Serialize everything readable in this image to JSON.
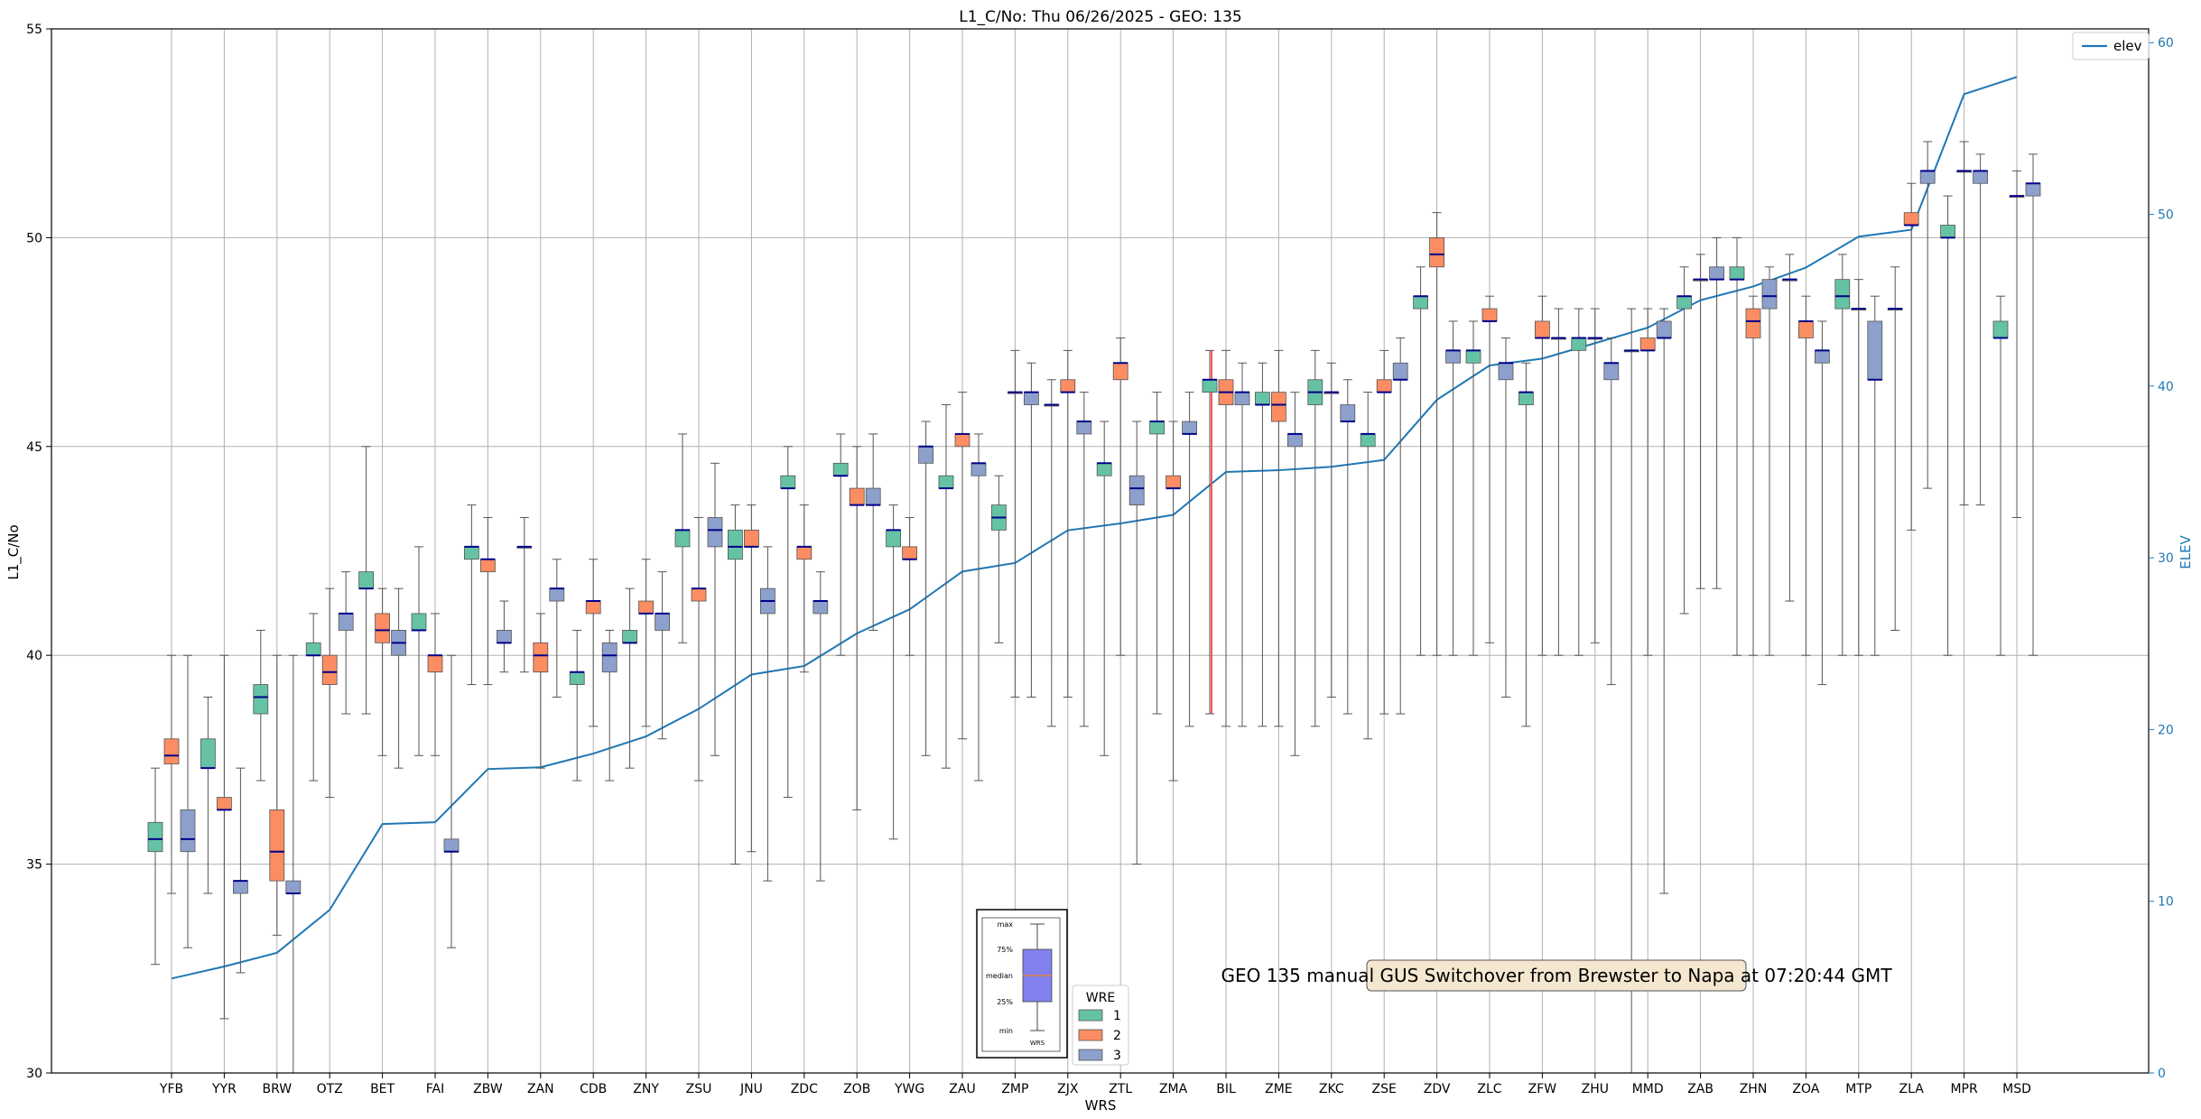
{
  "chart_data": {
    "type": "box",
    "title": "L1_C/No: Thu 06/26/2025 - GEO: 135",
    "xlabel": "WRS",
    "ylabel": "L1_C/No",
    "y2label": "ELEV",
    "ylim": [
      30,
      55
    ],
    "y2lim": [
      0,
      60.8
    ],
    "yticks": [
      30,
      35,
      40,
      45,
      50,
      55
    ],
    "y2ticks": [
      0,
      10,
      20,
      30,
      40,
      50,
      60
    ],
    "grid": true,
    "legend": {
      "entries": [
        "elev"
      ],
      "placement": "top-right"
    },
    "annotation": "GEO 135 manual GUS Switchover from Brewster to Napa at 07:20:44 GMT",
    "colors": {
      "1": "#66c2a5",
      "2": "#fc8d62",
      "3": "#8da0cb",
      "elev": "#1f77b4",
      "median": "#00008b",
      "whisker": "#555555",
      "highlight": "#ff5555",
      "y2axis": "#1f77b4"
    },
    "wre_legend": {
      "title": "WRE",
      "labels": [
        "1",
        "2",
        "3"
      ]
    },
    "inset_box_legend": {
      "labels": [
        "max",
        "75%",
        "median",
        "25%",
        "min"
      ],
      "xlabel": "WRS"
    },
    "categories": [
      "YFB",
      "YYR",
      "BRW",
      "OTZ",
      "BET",
      "FAI",
      "ZBW",
      "ZAN",
      "CDB",
      "ZNY",
      "ZSU",
      "JNU",
      "ZDC",
      "ZOB",
      "YWG",
      "ZAU",
      "ZMP",
      "ZJX",
      "ZTL",
      "ZMA",
      "BIL",
      "ZME",
      "ZKC",
      "ZSE",
      "ZDV",
      "ZLC",
      "ZFW",
      "ZHU",
      "MMD",
      "ZAB",
      "ZHN",
      "ZOA",
      "MTP",
      "ZLA",
      "MPR",
      "MSD"
    ],
    "elev": [
      5.5,
      6.2,
      7.0,
      9.5,
      14.5,
      14.6,
      17.7,
      17.8,
      18.6,
      19.6,
      21.2,
      23.2,
      23.7,
      25.6,
      27.0,
      29.2,
      29.7,
      31.6,
      32.0,
      32.5,
      35.0,
      35.1,
      35.3,
      35.7,
      39.2,
      41.2,
      41.6,
      42.5,
      43.4,
      45.0,
      45.8,
      46.9,
      48.7,
      49.1,
      57.0,
      58.0
    ],
    "boxes": [
      {
        "wrs": "YFB",
        "wre": 1,
        "min": 32.6,
        "q1": 35.3,
        "median": 35.6,
        "q3": 36.0,
        "max": 37.3
      },
      {
        "wrs": "YFB",
        "wre": 2,
        "min": 34.3,
        "q1": 37.4,
        "median": 37.6,
        "q3": 38.0,
        "max": 40.0
      },
      {
        "wrs": "YFB",
        "wre": 3,
        "min": 33.0,
        "q1": 35.3,
        "median": 35.6,
        "q3": 36.3,
        "max": 40.0
      },
      {
        "wrs": "YYR",
        "wre": 1,
        "min": 34.3,
        "q1": 37.3,
        "median": 37.3,
        "q3": 38.0,
        "max": 39.0
      },
      {
        "wrs": "YYR",
        "wre": 2,
        "min": 31.3,
        "q1": 36.3,
        "median": 36.3,
        "q3": 36.6,
        "max": 40.0
      },
      {
        "wrs": "YYR",
        "wre": 3,
        "min": 32.4,
        "q1": 34.3,
        "median": 34.6,
        "q3": 34.6,
        "max": 37.3
      },
      {
        "wrs": "BRW",
        "wre": 1,
        "min": 37.0,
        "q1": 38.6,
        "median": 39.0,
        "q3": 39.3,
        "max": 40.6
      },
      {
        "wrs": "BRW",
        "wre": 2,
        "min": 33.3,
        "q1": 34.6,
        "median": 35.3,
        "q3": 36.3,
        "max": 40.0
      },
      {
        "wrs": "BRW",
        "wre": 3,
        "min": 30.0,
        "q1": 34.3,
        "median": 34.3,
        "q3": 34.6,
        "max": 40.0
      },
      {
        "wrs": "OTZ",
        "wre": 1,
        "min": 37.0,
        "q1": 40.0,
        "median": 40.0,
        "q3": 40.3,
        "max": 41.0
      },
      {
        "wrs": "OTZ",
        "wre": 2,
        "min": 36.6,
        "q1": 39.3,
        "median": 39.6,
        "q3": 40.0,
        "max": 41.6
      },
      {
        "wrs": "OTZ",
        "wre": 3,
        "min": 38.6,
        "q1": 40.6,
        "median": 41.0,
        "q3": 41.0,
        "max": 42.0
      },
      {
        "wrs": "BET",
        "wre": 1,
        "min": 38.6,
        "q1": 41.6,
        "median": 41.6,
        "q3": 42.0,
        "max": 45.0
      },
      {
        "wrs": "BET",
        "wre": 2,
        "min": 37.6,
        "q1": 40.3,
        "median": 40.6,
        "q3": 41.0,
        "max": 41.6
      },
      {
        "wrs": "BET",
        "wre": 3,
        "min": 37.3,
        "q1": 40.0,
        "median": 40.3,
        "q3": 40.6,
        "max": 41.6
      },
      {
        "wrs": "FAI",
        "wre": 1,
        "min": 37.6,
        "q1": 40.6,
        "median": 40.6,
        "q3": 41.0,
        "max": 42.6
      },
      {
        "wrs": "FAI",
        "wre": 2,
        "min": 37.6,
        "q1": 39.6,
        "median": 40.0,
        "q3": 40.0,
        "max": 41.0
      },
      {
        "wrs": "FAI",
        "wre": 3,
        "min": 33.0,
        "q1": 35.3,
        "median": 35.3,
        "q3": 35.6,
        "max": 40.0
      },
      {
        "wrs": "ZBW",
        "wre": 1,
        "min": 39.3,
        "q1": 42.3,
        "median": 42.6,
        "q3": 42.6,
        "max": 43.6
      },
      {
        "wrs": "ZBW",
        "wre": 2,
        "min": 39.3,
        "q1": 42.0,
        "median": 42.3,
        "q3": 42.3,
        "max": 43.3
      },
      {
        "wrs": "ZBW",
        "wre": 3,
        "min": 39.6,
        "q1": 40.3,
        "median": 40.3,
        "q3": 40.6,
        "max": 41.3
      },
      {
        "wrs": "ZAN",
        "wre": 1,
        "min": 39.6,
        "q1": 42.6,
        "median": 42.6,
        "q3": 42.6,
        "max": 43.3
      },
      {
        "wrs": "ZAN",
        "wre": 2,
        "min": 37.3,
        "q1": 39.6,
        "median": 40.0,
        "q3": 40.3,
        "max": 41.0
      },
      {
        "wrs": "ZAN",
        "wre": 3,
        "min": 39.0,
        "q1": 41.3,
        "median": 41.6,
        "q3": 41.6,
        "max": 42.3
      },
      {
        "wrs": "CDB",
        "wre": 1,
        "min": 37.0,
        "q1": 39.3,
        "median": 39.6,
        "q3": 39.6,
        "max": 40.6
      },
      {
        "wrs": "CDB",
        "wre": 2,
        "min": 38.3,
        "q1": 41.0,
        "median": 41.3,
        "q3": 41.3,
        "max": 42.3
      },
      {
        "wrs": "CDB",
        "wre": 3,
        "min": 37.0,
        "q1": 39.6,
        "median": 40.0,
        "q3": 40.3,
        "max": 40.6
      },
      {
        "wrs": "ZNY",
        "wre": 1,
        "min": 37.3,
        "q1": 40.3,
        "median": 40.3,
        "q3": 40.6,
        "max": 41.6
      },
      {
        "wrs": "ZNY",
        "wre": 2,
        "min": 38.3,
        "q1": 41.0,
        "median": 41.0,
        "q3": 41.3,
        "max": 42.3
      },
      {
        "wrs": "ZNY",
        "wre": 3,
        "min": 38.0,
        "q1": 40.6,
        "median": 41.0,
        "q3": 41.0,
        "max": 42.0
      },
      {
        "wrs": "ZSU",
        "wre": 1,
        "min": 40.3,
        "q1": 42.6,
        "median": 43.0,
        "q3": 43.0,
        "max": 45.3
      },
      {
        "wrs": "ZSU",
        "wre": 2,
        "min": 37.0,
        "q1": 41.3,
        "median": 41.6,
        "q3": 41.6,
        "max": 43.3
      },
      {
        "wrs": "ZSU",
        "wre": 3,
        "min": 37.6,
        "q1": 42.6,
        "median": 43.0,
        "q3": 43.3,
        "max": 44.6
      },
      {
        "wrs": "JNU",
        "wre": 1,
        "min": 35.0,
        "q1": 42.3,
        "median": 42.6,
        "q3": 43.0,
        "max": 43.6
      },
      {
        "wrs": "JNU",
        "wre": 2,
        "min": 35.3,
        "q1": 42.6,
        "median": 42.6,
        "q3": 43.0,
        "max": 43.6
      },
      {
        "wrs": "JNU",
        "wre": 3,
        "min": 34.6,
        "q1": 41.0,
        "median": 41.3,
        "q3": 41.6,
        "max": 42.6
      },
      {
        "wrs": "ZDC",
        "wre": 1,
        "min": 36.6,
        "q1": 44.0,
        "median": 44.0,
        "q3": 44.3,
        "max": 45.0
      },
      {
        "wrs": "ZDC",
        "wre": 2,
        "min": 39.6,
        "q1": 42.3,
        "median": 42.6,
        "q3": 42.6,
        "max": 43.6
      },
      {
        "wrs": "ZDC",
        "wre": 3,
        "min": 34.6,
        "q1": 41.0,
        "median": 41.3,
        "q3": 41.3,
        "max": 42.0
      },
      {
        "wrs": "ZOB",
        "wre": 1,
        "min": 40.0,
        "q1": 44.3,
        "median": 44.3,
        "q3": 44.6,
        "max": 45.3
      },
      {
        "wrs": "ZOB",
        "wre": 2,
        "min": 36.3,
        "q1": 43.6,
        "median": 43.6,
        "q3": 44.0,
        "max": 45.0
      },
      {
        "wrs": "ZOB",
        "wre": 3,
        "min": 40.6,
        "q1": 43.6,
        "median": 43.6,
        "q3": 44.0,
        "max": 45.3
      },
      {
        "wrs": "YWG",
        "wre": 1,
        "min": 35.6,
        "q1": 42.6,
        "median": 43.0,
        "q3": 43.0,
        "max": 43.6
      },
      {
        "wrs": "YWG",
        "wre": 2,
        "min": 40.0,
        "q1": 42.3,
        "median": 42.3,
        "q3": 42.6,
        "max": 43.3
      },
      {
        "wrs": "YWG",
        "wre": 3,
        "min": 37.6,
        "q1": 44.6,
        "median": 45.0,
        "q3": 45.0,
        "max": 45.6
      },
      {
        "wrs": "ZAU",
        "wre": 1,
        "min": 37.3,
        "q1": 44.0,
        "median": 44.0,
        "q3": 44.3,
        "max": 46.0
      },
      {
        "wrs": "ZAU",
        "wre": 2,
        "min": 38.0,
        "q1": 45.0,
        "median": 45.3,
        "q3": 45.3,
        "max": 46.3
      },
      {
        "wrs": "ZAU",
        "wre": 3,
        "min": 37.0,
        "q1": 44.3,
        "median": 44.6,
        "q3": 44.6,
        "max": 45.3
      },
      {
        "wrs": "ZMP",
        "wre": 1,
        "min": 40.3,
        "q1": 43.0,
        "median": 43.3,
        "q3": 43.6,
        "max": 44.3
      },
      {
        "wrs": "ZMP",
        "wre": 2,
        "min": 39.0,
        "q1": 46.3,
        "median": 46.3,
        "q3": 46.3,
        "max": 47.3
      },
      {
        "wrs": "ZMP",
        "wre": 3,
        "min": 39.0,
        "q1": 46.0,
        "median": 46.3,
        "q3": 46.3,
        "max": 47.0
      },
      {
        "wrs": "ZJX",
        "wre": 1,
        "min": 38.3,
        "q1": 46.0,
        "median": 46.0,
        "q3": 46.0,
        "max": 46.6
      },
      {
        "wrs": "ZJX",
        "wre": 2,
        "min": 39.0,
        "q1": 46.3,
        "median": 46.3,
        "q3": 46.6,
        "max": 47.3
      },
      {
        "wrs": "ZJX",
        "wre": 3,
        "min": 38.3,
        "q1": 45.3,
        "median": 45.6,
        "q3": 45.6,
        "max": 46.3
      },
      {
        "wrs": "ZTL",
        "wre": 1,
        "min": 37.6,
        "q1": 44.3,
        "median": 44.6,
        "q3": 44.6,
        "max": 45.6
      },
      {
        "wrs": "ZTL",
        "wre": 2,
        "min": 40.0,
        "q1": 46.6,
        "median": 47.0,
        "q3": 47.0,
        "max": 47.6
      },
      {
        "wrs": "ZTL",
        "wre": 3,
        "min": 35.0,
        "q1": 43.6,
        "median": 44.0,
        "q3": 44.3,
        "max": 45.6
      },
      {
        "wrs": "ZMA",
        "wre": 1,
        "min": 38.6,
        "q1": 45.3,
        "median": 45.6,
        "q3": 45.6,
        "max": 46.3
      },
      {
        "wrs": "ZMA",
        "wre": 2,
        "min": 37.0,
        "q1": 44.0,
        "median": 44.0,
        "q3": 44.3,
        "max": 45.6
      },
      {
        "wrs": "ZMA",
        "wre": 3,
        "min": 38.3,
        "q1": 45.3,
        "median": 45.3,
        "q3": 45.6,
        "max": 46.3
      },
      {
        "wrs": "BIL",
        "wre": 1,
        "min": 38.6,
        "q1": 46.3,
        "median": 46.6,
        "q3": 46.6,
        "max": 47.3
      },
      {
        "wrs": "BIL",
        "wre": 2,
        "min": 38.3,
        "q1": 46.0,
        "median": 46.3,
        "q3": 46.6,
        "max": 47.3
      },
      {
        "wrs": "BIL",
        "wre": 3,
        "min": 38.3,
        "q1": 46.0,
        "median": 46.3,
        "q3": 46.3,
        "max": 47.0
      },
      {
        "wrs": "ZME",
        "wre": 1,
        "min": 38.3,
        "q1": 46.0,
        "median": 46.0,
        "q3": 46.3,
        "max": 47.0
      },
      {
        "wrs": "ZME",
        "wre": 2,
        "min": 38.3,
        "q1": 45.6,
        "median": 46.0,
        "q3": 46.3,
        "max": 47.3
      },
      {
        "wrs": "ZME",
        "wre": 3,
        "min": 37.6,
        "q1": 45.0,
        "median": 45.3,
        "q3": 45.3,
        "max": 46.3
      },
      {
        "wrs": "ZKC",
        "wre": 1,
        "min": 38.3,
        "q1": 46.0,
        "median": 46.3,
        "q3": 46.6,
        "max": 47.3
      },
      {
        "wrs": "ZKC",
        "wre": 2,
        "min": 39.0,
        "q1": 46.3,
        "median": 46.3,
        "q3": 46.3,
        "max": 47.0
      },
      {
        "wrs": "ZKC",
        "wre": 3,
        "min": 38.6,
        "q1": 45.6,
        "median": 45.6,
        "q3": 46.0,
        "max": 46.6
      },
      {
        "wrs": "ZSE",
        "wre": 1,
        "min": 38.0,
        "q1": 45.0,
        "median": 45.3,
        "q3": 45.3,
        "max": 46.3
      },
      {
        "wrs": "ZSE",
        "wre": 2,
        "min": 38.6,
        "q1": 46.3,
        "median": 46.3,
        "q3": 46.6,
        "max": 47.3
      },
      {
        "wrs": "ZSE",
        "wre": 3,
        "min": 38.6,
        "q1": 46.6,
        "median": 46.6,
        "q3": 47.0,
        "max": 47.6
      },
      {
        "wrs": "ZDV",
        "wre": 1,
        "min": 40.0,
        "q1": 48.3,
        "median": 48.6,
        "q3": 48.6,
        "max": 49.3
      },
      {
        "wrs": "ZDV",
        "wre": 2,
        "min": 40.0,
        "q1": 49.3,
        "median": 49.6,
        "q3": 50.0,
        "max": 50.6
      },
      {
        "wrs": "ZDV",
        "wre": 3,
        "min": 40.0,
        "q1": 47.0,
        "median": 47.3,
        "q3": 47.3,
        "max": 48.0
      },
      {
        "wrs": "ZLC",
        "wre": 1,
        "min": 40.0,
        "q1": 47.0,
        "median": 47.3,
        "q3": 47.3,
        "max": 48.0
      },
      {
        "wrs": "ZLC",
        "wre": 2,
        "min": 40.3,
        "q1": 48.0,
        "median": 48.0,
        "q3": 48.3,
        "max": 48.6
      },
      {
        "wrs": "ZLC",
        "wre": 3,
        "min": 39.0,
        "q1": 46.6,
        "median": 47.0,
        "q3": 47.0,
        "max": 47.6
      },
      {
        "wrs": "ZFW",
        "wre": 1,
        "min": 38.3,
        "q1": 46.0,
        "median": 46.3,
        "q3": 46.3,
        "max": 47.0
      },
      {
        "wrs": "ZFW",
        "wre": 2,
        "min": 40.0,
        "q1": 47.6,
        "median": 47.6,
        "q3": 48.0,
        "max": 48.6
      },
      {
        "wrs": "ZFW",
        "wre": 3,
        "min": 40.0,
        "q1": 47.6,
        "median": 47.6,
        "q3": 47.6,
        "max": 48.3
      },
      {
        "wrs": "ZHU",
        "wre": 1,
        "min": 40.0,
        "q1": 47.3,
        "median": 47.6,
        "q3": 47.6,
        "max": 48.3
      },
      {
        "wrs": "ZHU",
        "wre": 2,
        "min": 40.3,
        "q1": 47.6,
        "median": 47.6,
        "q3": 47.6,
        "max": 48.3
      },
      {
        "wrs": "ZHU",
        "wre": 3,
        "min": 39.3,
        "q1": 46.6,
        "median": 47.0,
        "q3": 47.0,
        "max": 47.6
      },
      {
        "wrs": "MMD",
        "wre": 1,
        "min": 30.0,
        "q1": 47.3,
        "median": 47.3,
        "q3": 47.3,
        "max": 48.3
      },
      {
        "wrs": "MMD",
        "wre": 2,
        "min": 40.0,
        "q1": 47.3,
        "median": 47.3,
        "q3": 47.6,
        "max": 48.3
      },
      {
        "wrs": "MMD",
        "wre": 3,
        "min": 34.3,
        "q1": 47.6,
        "median": 47.6,
        "q3": 48.0,
        "max": 48.3
      },
      {
        "wrs": "ZAB",
        "wre": 1,
        "min": 41.0,
        "q1": 48.3,
        "median": 48.6,
        "q3": 48.6,
        "max": 49.3
      },
      {
        "wrs": "ZAB",
        "wre": 2,
        "min": 41.6,
        "q1": 49.0,
        "median": 49.0,
        "q3": 49.0,
        "max": 49.6
      },
      {
        "wrs": "ZAB",
        "wre": 3,
        "min": 41.6,
        "q1": 49.0,
        "median": 49.0,
        "q3": 49.3,
        "max": 50.0
      },
      {
        "wrs": "ZHN",
        "wre": 1,
        "min": 40.0,
        "q1": 49.0,
        "median": 49.0,
        "q3": 49.3,
        "max": 50.0
      },
      {
        "wrs": "ZHN",
        "wre": 2,
        "min": 40.0,
        "q1": 47.6,
        "median": 48.0,
        "q3": 48.3,
        "max": 48.6
      },
      {
        "wrs": "ZHN",
        "wre": 3,
        "min": 40.0,
        "q1": 48.3,
        "median": 48.6,
        "q3": 49.0,
        "max": 49.3
      },
      {
        "wrs": "ZOA",
        "wre": 1,
        "min": 41.3,
        "q1": 49.0,
        "median": 49.0,
        "q3": 49.0,
        "max": 49.6
      },
      {
        "wrs": "ZOA",
        "wre": 2,
        "min": 40.0,
        "q1": 47.6,
        "median": 48.0,
        "q3": 48.0,
        "max": 48.6
      },
      {
        "wrs": "ZOA",
        "wre": 3,
        "min": 39.3,
        "q1": 47.0,
        "median": 47.3,
        "q3": 47.3,
        "max": 48.0
      },
      {
        "wrs": "MTP",
        "wre": 1,
        "min": 40.0,
        "q1": 48.3,
        "median": 48.6,
        "q3": 49.0,
        "max": 49.6
      },
      {
        "wrs": "MTP",
        "wre": 2,
        "min": 40.0,
        "q1": 48.3,
        "median": 48.3,
        "q3": 48.3,
        "max": 49.0
      },
      {
        "wrs": "MTP",
        "wre": 3,
        "min": 40.0,
        "q1": 46.6,
        "median": 46.6,
        "q3": 48.0,
        "max": 48.6
      },
      {
        "wrs": "ZLA",
        "wre": 1,
        "min": 40.6,
        "q1": 48.3,
        "median": 48.3,
        "q3": 48.3,
        "max": 49.3
      },
      {
        "wrs": "ZLA",
        "wre": 2,
        "min": 43.0,
        "q1": 50.3,
        "median": 50.3,
        "q3": 50.6,
        "max": 51.3
      },
      {
        "wrs": "ZLA",
        "wre": 3,
        "min": 44.0,
        "q1": 51.3,
        "median": 51.6,
        "q3": 51.6,
        "max": 52.3
      },
      {
        "wrs": "MPR",
        "wre": 1,
        "min": 40.0,
        "q1": 50.0,
        "median": 50.0,
        "q3": 50.3,
        "max": 51.0
      },
      {
        "wrs": "MPR",
        "wre": 2,
        "min": 43.6,
        "q1": 51.6,
        "median": 51.6,
        "q3": 51.6,
        "max": 52.3
      },
      {
        "wrs": "MPR",
        "wre": 3,
        "min": 43.6,
        "q1": 51.3,
        "median": 51.6,
        "q3": 51.6,
        "max": 52.0
      },
      {
        "wrs": "MSD",
        "wre": 1,
        "min": 40.0,
        "q1": 47.6,
        "median": 47.6,
        "q3": 48.0,
        "max": 48.6
      },
      {
        "wrs": "MSD",
        "wre": 2,
        "min": 43.3,
        "q1": 51.0,
        "median": 51.0,
        "q3": 51.0,
        "max": 51.6
      },
      {
        "wrs": "MSD",
        "wre": 3,
        "min": 40.0,
        "q1": 51.0,
        "median": 51.3,
        "q3": 51.3,
        "max": 52.0
      }
    ],
    "highlight_line": {
      "wrs": "BIL",
      "from": 38.6,
      "to": 47.3
    }
  }
}
